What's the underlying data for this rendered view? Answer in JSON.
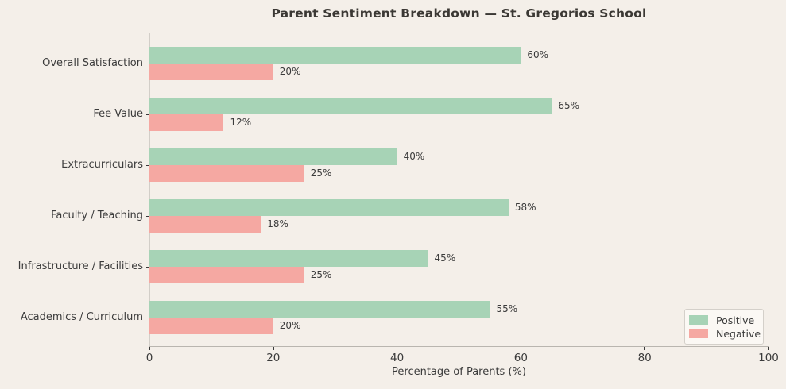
{
  "title": "Parent Sentiment Breakdown — St. Gregorios School",
  "chart_data": {
    "type": "bar",
    "orientation": "horizontal",
    "title": "Parent Sentiment Breakdown — St. Gregorios School",
    "xlabel": "Percentage of Parents (%)",
    "ylabel": "",
    "xlim": [
      0,
      100
    ],
    "xticks": [
      0,
      20,
      40,
      60,
      80,
      100
    ],
    "grid": false,
    "legend_position": "lower right",
    "value_label_format": "{v}%",
    "categories": [
      "Overall Satisfaction",
      "Fee Value",
      "Extracurriculars",
      "Faculty / Teaching",
      "Infrastructure / Facilities",
      "Academics / Curriculum"
    ],
    "series": [
      {
        "name": "Positive",
        "color": "#a7d3b6",
        "values": [
          60,
          65,
          40,
          58,
          45,
          55
        ]
      },
      {
        "name": "Negative",
        "color": "#f5a8a2",
        "values": [
          20,
          12,
          25,
          18,
          25,
          20
        ]
      }
    ]
  },
  "style": {
    "background": "#f4efe9",
    "spine_color": "#d2cec8",
    "text_color": "#3b3b3b",
    "title_color": "#3b3834",
    "legend_background": "#fbf8f4",
    "legend_border": "#d4d0ca"
  }
}
